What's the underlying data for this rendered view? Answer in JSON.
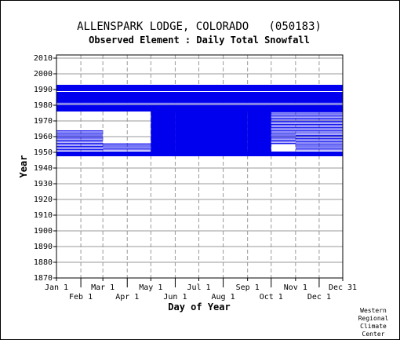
{
  "chart_data": {
    "type": "heatmap",
    "title": "ALLENSPARK LODGE, COLORADO   (050183)",
    "subtitle": "Observed Element : Daily Total Snowfall",
    "xlabel": "Day of Year",
    "ylabel": "Year",
    "xlim": [
      1,
      365
    ],
    "ylim": [
      1870,
      2012
    ],
    "x_ticks_top_row": [
      {
        "label": "Jan 1",
        "day": 1
      },
      {
        "label": "Mar 1",
        "day": 60
      },
      {
        "label": "May 1",
        "day": 121
      },
      {
        "label": "Jul 1",
        "day": 182
      },
      {
        "label": "Sep 1",
        "day": 244
      },
      {
        "label": "Nov 1",
        "day": 305
      },
      {
        "label": "Dec 31",
        "day": 365
      }
    ],
    "x_ticks_bottom_row": [
      {
        "label": "Feb 1",
        "day": 32
      },
      {
        "label": "Apr 1",
        "day": 91
      },
      {
        "label": "Jun 1",
        "day": 152
      },
      {
        "label": "Aug 1",
        "day": 213
      },
      {
        "label": "Oct 1",
        "day": 274
      },
      {
        "label": "Dec 1",
        "day": 335
      }
    ],
    "y_ticks": [
      1870,
      1880,
      1890,
      1900,
      1910,
      1920,
      1930,
      1940,
      1950,
      1960,
      1970,
      1980,
      1990,
      2000,
      2010
    ],
    "grid": true,
    "mark_color": "#0000ee",
    "coverage_blocks": [
      {
        "from_year": 1947.5,
        "to_year": 1950.5,
        "from_day": 1,
        "to_day": 365
      },
      {
        "from_year": 1950.5,
        "to_year": 1964.0,
        "from_day": 1,
        "to_day": 60,
        "partial": true
      },
      {
        "from_year": 1950.5,
        "to_year": 1956.0,
        "from_day": 60,
        "to_day": 121,
        "partial": true
      },
      {
        "from_year": 1950.5,
        "to_year": 1980.0,
        "from_day": 121,
        "to_day": 152
      },
      {
        "from_year": 1950.5,
        "to_year": 1979.0,
        "from_day": 152,
        "to_day": 182
      },
      {
        "from_year": 1948.0,
        "to_year": 1979.0,
        "from_day": 182,
        "to_day": 244
      },
      {
        "from_year": 1950.5,
        "to_year": 1980.0,
        "from_day": 244,
        "to_day": 274
      },
      {
        "from_year": 1955.0,
        "to_year": 1980.0,
        "from_day": 274,
        "to_day": 305,
        "partial": true
      },
      {
        "from_year": 1950.5,
        "to_year": 1962.0,
        "from_day": 305,
        "to_day": 365,
        "partial": true
      },
      {
        "from_year": 1962.0,
        "to_year": 1980.0,
        "from_day": 305,
        "to_day": 365,
        "partial": true
      },
      {
        "from_year": 1976.0,
        "to_year": 1980.0,
        "from_day": 1,
        "to_day": 365
      },
      {
        "from_year": 1980.0,
        "to_year": 1982.0,
        "from_day": 1,
        "to_day": 365,
        "partial": true
      },
      {
        "from_year": 1982.0,
        "to_year": 1988.5,
        "from_day": 1,
        "to_day": 365
      },
      {
        "from_year": 1989.0,
        "to_year": 1993.0,
        "from_day": 1,
        "to_day": 365
      }
    ],
    "credit": [
      "Western",
      "Regional",
      "Climate",
      "Center"
    ]
  }
}
